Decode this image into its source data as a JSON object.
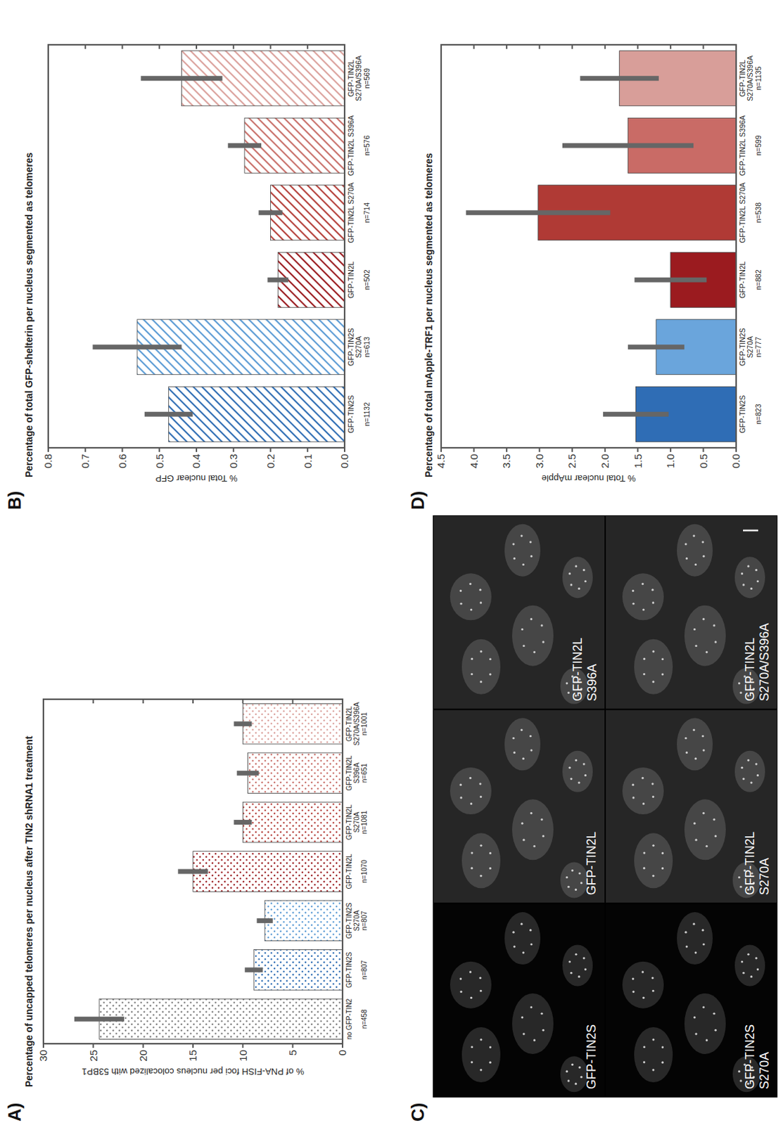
{
  "chart_data": [
    {
      "type": "bar",
      "panel_label": "A)",
      "title": "Percentage of uncapped telomeres per nucleus after TIN2 shRNA1 treatment",
      "y_label": "% of PNA-FISH foci per nucleus colocalized with 53BP1",
      "categories": [
        "no GFP-TIN2",
        "GFP-TIN2S",
        "GFP-TIN2S S270A",
        "GFP-TIN2L",
        "GFP-TIN2L S270A",
        "GFP-TIN2L S396A",
        "GFP-TIN2L S270A/S396A"
      ],
      "sample_sizes": [
        "n=458",
        "n=807",
        "n=807",
        "n=1070",
        "n=1081",
        "n=651",
        "n=1001"
      ],
      "values": [
        24.4,
        8.9,
        7.8,
        15.0,
        10.0,
        9.5,
        10.0
      ],
      "errors": [
        2.5,
        0.9,
        0.8,
        1.5,
        0.9,
        1.1,
        0.9
      ],
      "colors": [
        "#808080",
        "#2e6db4",
        "#5b9bd5",
        "#9b1c20",
        "#b5403b",
        "#c9706a",
        "#dba19c"
      ],
      "ylim": [
        0,
        30
      ],
      "yticks": [
        0,
        5,
        10,
        15,
        20,
        25,
        30
      ],
      "grid": false
    },
    {
      "type": "bar",
      "panel_label": "B)",
      "title": "Percentage of total GFP-shelterin per nucleus segmented as telomeres",
      "y_label": "% Total nuclear GFP",
      "categories": [
        "GFP-TIN2S",
        "GFP-TIN2S S270A",
        "GFP-TIN2L",
        "GFP-TIN2L S270A",
        "GFP-TIN2L S396A",
        "GFP-TIN2L S270A/S396A"
      ],
      "sample_sizes": [
        "n=1132",
        "n=613",
        "n=502",
        "n=714",
        "n=576",
        "n=569"
      ],
      "values": [
        0.475,
        0.56,
        0.18,
        0.2,
        0.27,
        0.44
      ],
      "errors": [
        0.065,
        0.12,
        0.028,
        0.032,
        0.045,
        0.11
      ],
      "colors": [
        "#2e6db4",
        "#5b9bd5",
        "#9b1c20",
        "#b5403b",
        "#c9706a",
        "#dba19c"
      ],
      "ylim": [
        0,
        0.8
      ],
      "yticks": [
        {
          "value": 0,
          "label": "0.0"
        },
        0.1,
        0.2,
        0.3,
        0.4,
        0.5,
        0.6,
        0.7,
        0.8
      ],
      "grid": false
    },
    {
      "type": "bar",
      "panel_label": "D)",
      "title": "Percentage of total mApple-TRF1 per nucleus segmented as telomeres",
      "y_label": "% Total nuclear mApple",
      "categories": [
        "GFP-TIN2S",
        "GFP-TIN2S S270A",
        "GFP-TIN2L",
        "GFP-TIN2L S270A",
        "GFP-TIN2L S396A",
        "GFP-TIN2L S270A/S396A"
      ],
      "sample_sizes": [
        "n=823",
        "n=777",
        "n=882",
        "n=538",
        "n=599",
        "n=1135"
      ],
      "values": [
        1.53,
        1.22,
        1.0,
        3.02,
        1.65,
        1.78
      ],
      "errors": [
        0.5,
        0.43,
        0.55,
        1.1,
        1.0,
        0.6
      ],
      "colors": [
        "#2f6db5",
        "#6aa5dc",
        "#9b1b1f",
        "#b03a35",
        "#c96b66",
        "#d89e99"
      ],
      "ylim": [
        0,
        4.5
      ],
      "yticks": [
        {
          "value": 0,
          "label": "0.0"
        },
        0.5,
        {
          "value": 1,
          "label": "1.0"
        },
        1.5,
        {
          "value": 2,
          "label": "2.0"
        },
        2.5,
        {
          "value": 3,
          "label": "3.0"
        },
        3.5,
        {
          "value": 4,
          "label": "4.0"
        },
        4.5
      ],
      "grid": false
    }
  ],
  "image_panel": {
    "panel_label": "C)",
    "labels": [
      "GFP-TIN2S",
      "GFP-TIN2L",
      "GFP-TIN2L S396A",
      "GFP-TIN2S S270A",
      "GFP-TIN2L S270A",
      "GFP-TIN2L S270A/S396A"
    ]
  }
}
